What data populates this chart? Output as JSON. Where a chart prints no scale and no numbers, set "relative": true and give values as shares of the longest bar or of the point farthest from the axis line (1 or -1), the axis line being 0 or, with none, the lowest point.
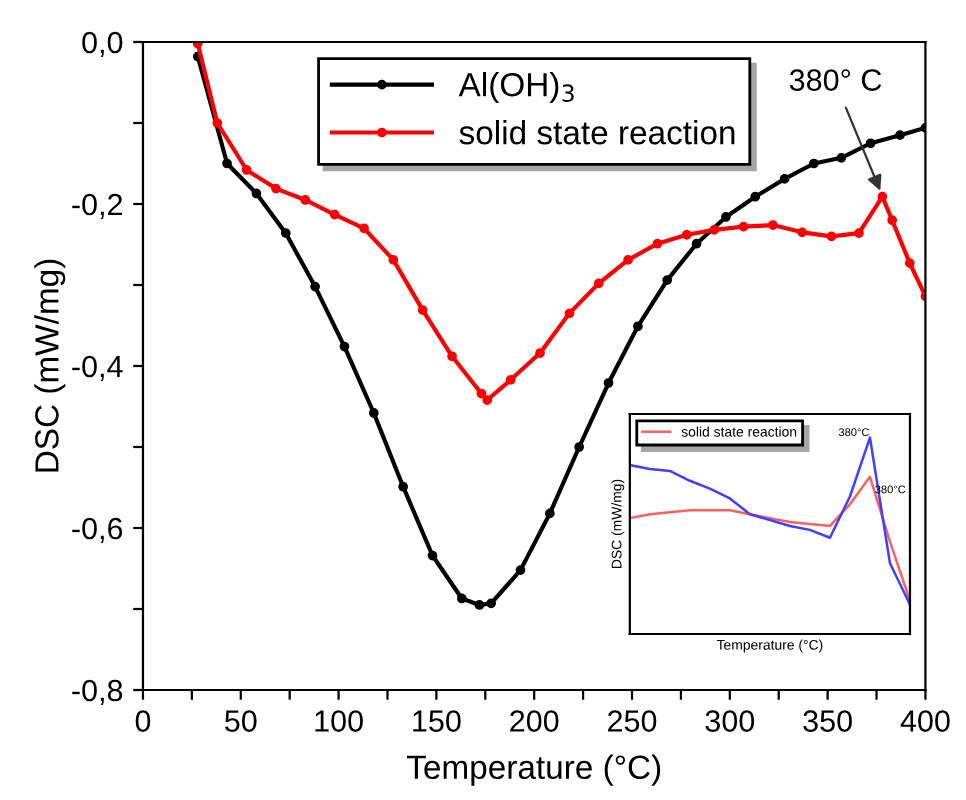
{
  "chart_data": [
    {
      "type": "line",
      "xlabel": "Temperature (°C)",
      "ylabel": "DSC (mW/mg)",
      "marker": "circle",
      "line_style": "solid",
      "legend": "top",
      "grid": false,
      "xlim": [
        0,
        400
      ],
      "ylim": [
        -0.8,
        0.0
      ],
      "xticks": [
        0,
        {
          "value": 25,
          "label": null
        },
        50,
        {
          "value": 75,
          "label": null
        },
        100,
        {
          "value": 125,
          "label": null
        },
        150,
        {
          "value": 175,
          "label": null
        },
        200,
        {
          "value": 225,
          "label": null
        },
        250,
        {
          "value": 275,
          "label": null
        },
        300,
        {
          "value": 325,
          "label": null
        },
        350,
        {
          "value": 375,
          "label": null
        },
        400
      ],
      "yticks": [
        {
          "value": -0.8,
          "label": "-0,8"
        },
        {
          "value": -0.7,
          "label": null
        },
        {
          "value": -0.6,
          "label": "-0,6"
        },
        {
          "value": -0.5,
          "label": null
        },
        {
          "value": -0.4,
          "label": "-0,4"
        },
        {
          "value": -0.3,
          "label": null
        },
        {
          "value": -0.2,
          "label": "-0,2"
        },
        {
          "value": -0.1,
          "label": null
        },
        {
          "value": 0.0,
          "label": "0,0"
        }
      ],
      "annotations": [
        {
          "text": "380° C",
          "x": 378,
          "y": -0.19
        }
      ],
      "series": [
        {
          "name": "Al(OH)$_{3}$",
          "color": "#000000",
          "x": [
            28,
            43,
            58,
            73,
            88,
            103,
            118,
            133,
            148,
            163,
            172,
            178,
            193,
            208,
            223,
            238,
            253,
            268,
            283,
            298,
            313,
            328,
            343,
            357,
            372,
            387,
            400
          ],
          "values": [
            -0.018,
            -0.15,
            -0.187,
            -0.236,
            -0.302,
            -0.376,
            -0.458,
            -0.549,
            -0.634,
            -0.687,
            -0.695,
            -0.693,
            -0.652,
            -0.582,
            -0.5,
            -0.421,
            -0.351,
            -0.294,
            -0.249,
            -0.216,
            -0.191,
            -0.169,
            -0.15,
            -0.143,
            -0.125,
            -0.115,
            -0.106
          ]
        },
        {
          "name": "solid state reaction",
          "color": "#ff0000",
          "x": [
            28,
            38,
            53,
            68,
            83,
            98,
            113,
            128,
            143,
            158,
            173,
            176,
            188,
            203,
            218,
            233,
            248,
            263,
            278,
            292,
            307,
            322,
            337,
            352,
            366,
            378,
            383,
            392,
            400
          ],
          "values": [
            -0.002,
            -0.1,
            -0.158,
            -0.181,
            -0.195,
            -0.213,
            -0.23,
            -0.269,
            -0.331,
            -0.388,
            -0.434,
            -0.442,
            -0.417,
            -0.384,
            -0.335,
            -0.298,
            -0.269,
            -0.249,
            -0.238,
            -0.232,
            -0.228,
            -0.226,
            -0.235,
            -0.24,
            -0.236,
            -0.191,
            -0.22,
            -0.273,
            -0.314
          ]
        }
      ]
    },
    {
      "type": "line",
      "relative": true,
      "xlabel": "Temperature (°C)",
      "ylabel": "DSC (mW/mg)",
      "legend": "top left",
      "grid": false,
      "categories": [
        null,
        null,
        null,
        null,
        null,
        null,
        null,
        null,
        null,
        null,
        null,
        null,
        null,
        null,
        null
      ],
      "annotations": [
        "380°C",
        "380°C"
      ],
      "series": [
        {
          "name": "solid state reaction",
          "color": "#ff6060",
          "values": [
            0.59,
            0.61,
            0.62,
            0.63,
            0.63,
            0.63,
            0.61,
            0.59,
            0.57,
            0.56,
            0.55,
            0.66,
            0.8,
            0.47,
            0.17
          ]
        },
        {
          "color": "#4040ff",
          "values": [
            0.86,
            0.84,
            0.83,
            0.78,
            0.74,
            0.69,
            0.61,
            0.58,
            0.55,
            0.53,
            0.49,
            0.7,
            1.0,
            0.36,
            0.15
          ]
        }
      ]
    }
  ]
}
